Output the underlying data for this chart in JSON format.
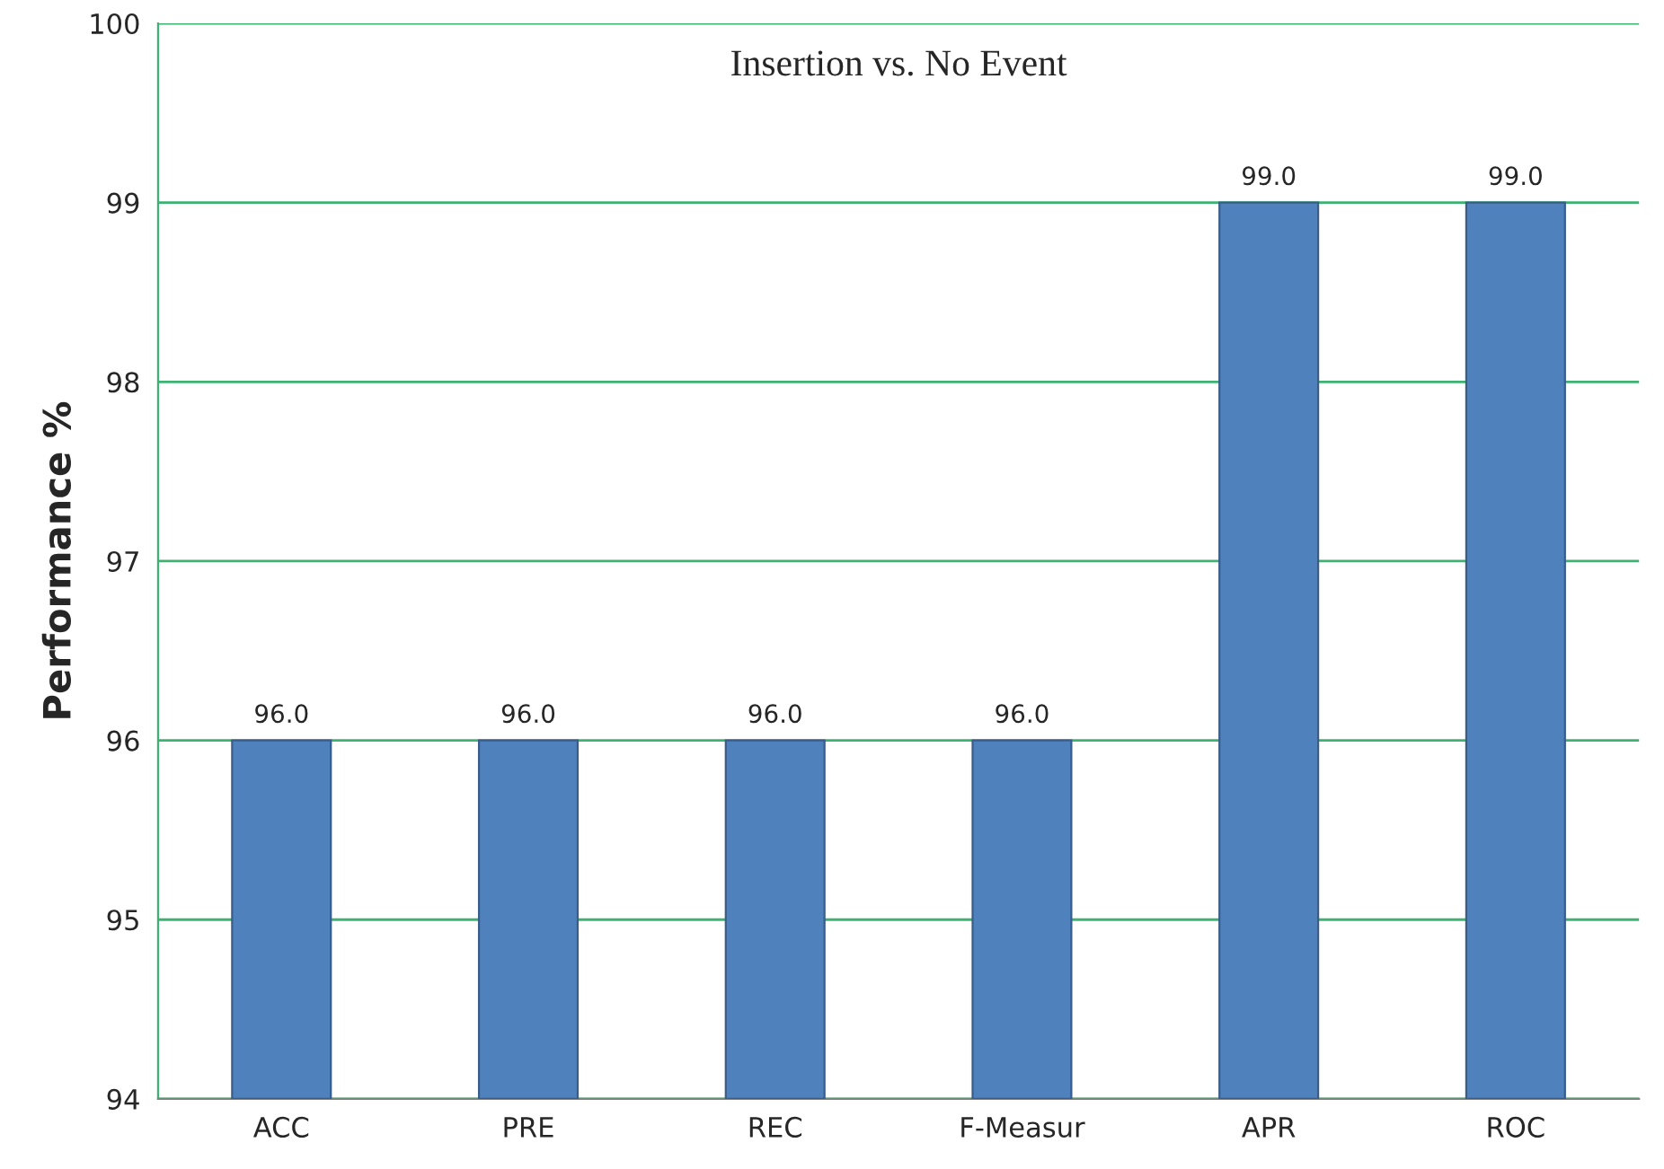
{
  "chart_data": {
    "type": "bar",
    "title": "Insertion vs. No Event",
    "ylabel": "Performance %",
    "categories": [
      "ACC",
      "PRE",
      "REC",
      "F-Measur",
      "APR",
      "ROC"
    ],
    "values": [
      96.0,
      96.0,
      96.0,
      96.0,
      99.0,
      99.0
    ],
    "color": "#4f81bd",
    "ylim": [
      94,
      100
    ],
    "yticks": [
      94,
      95,
      96,
      97,
      98,
      99,
      100
    ],
    "grid": "y",
    "value_labels": [
      "96.0",
      "96.0",
      "96.0",
      "96.0",
      "99.0",
      "99.0"
    ]
  }
}
